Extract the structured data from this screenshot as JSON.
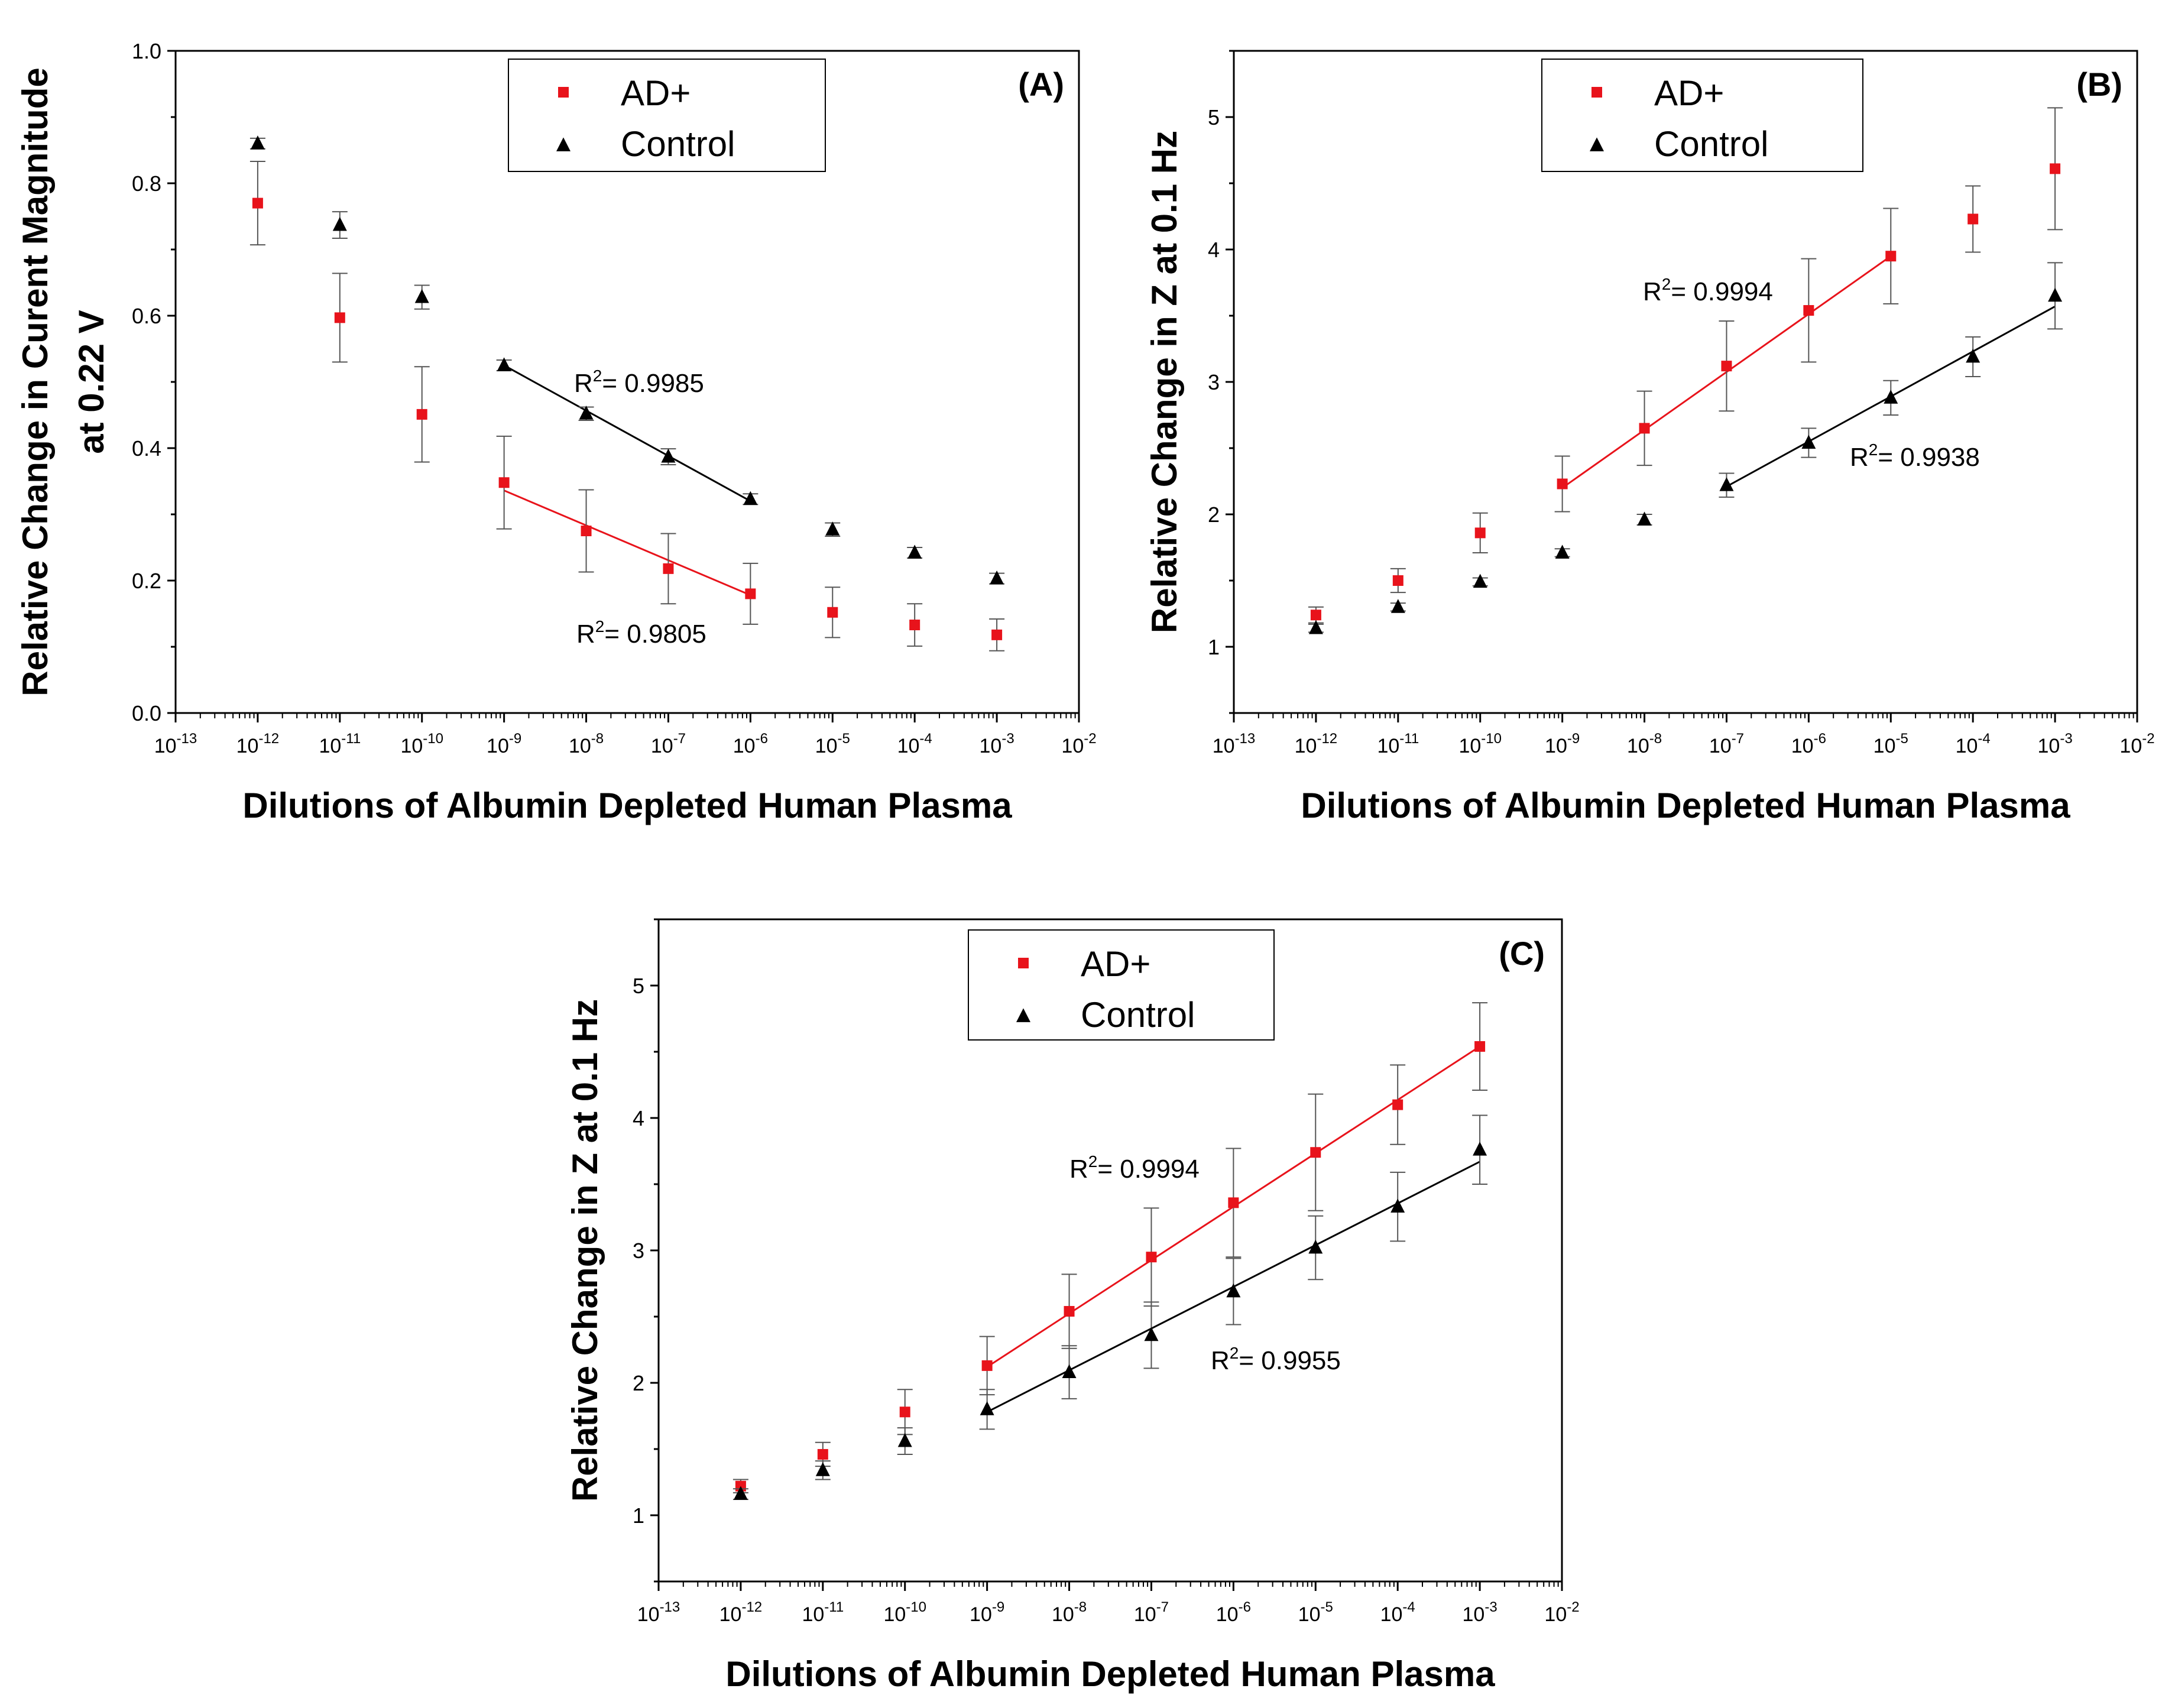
{
  "figure": {
    "panels": [
      "A",
      "B",
      "C"
    ]
  },
  "colors": {
    "ad": "#e8131b",
    "control": "#000000",
    "axis": "#000000",
    "error": "#555555"
  },
  "chart_data": [
    {
      "id": "A",
      "type": "scatter",
      "panel_label": "(A)",
      "title": "",
      "xlabel": "Dilutions of Albumin Depleted Human Plasma",
      "ylabel_lines": [
        "Relative Change in Curent Magnitude",
        "at 0.22 V"
      ],
      "x_scale": "log10",
      "xlim_exp": [
        -13,
        -2
      ],
      "ylim": [
        0.0,
        1.0
      ],
      "yticks": [
        0.0,
        0.2,
        0.4,
        0.6,
        0.8,
        1.0
      ],
      "ytick_labels": [
        "0.0",
        "0.2",
        "0.4",
        "0.6",
        "0.8",
        "1.0"
      ],
      "xtick_exponents": [
        "-13",
        "-12",
        "-11",
        "-10",
        "-9",
        "-8",
        "-7",
        "-6",
        "-5",
        "-4",
        "-3",
        "-2"
      ],
      "xtick_base": "10",
      "legend": {
        "position": "top-center",
        "entries": [
          "AD+",
          "Control"
        ]
      },
      "series": [
        {
          "name": "AD+",
          "marker": "square",
          "color": "#e8131b",
          "x_exp": [
            -12,
            -11,
            -10,
            -9,
            -8,
            -7,
            -6,
            -5,
            -4,
            -3
          ],
          "y": [
            0.77,
            0.597,
            0.451,
            0.348,
            0.275,
            0.218,
            0.18,
            0.152,
            0.133,
            0.118
          ],
          "err": [
            0.063,
            0.067,
            0.072,
            0.07,
            0.062,
            0.053,
            0.046,
            0.038,
            0.032,
            0.024
          ],
          "fit": {
            "x_exp": [
              -9,
              -6
            ],
            "y": [
              0.336,
              0.178
            ],
            "r2_label": "R",
            "r2_sup": "2",
            "r2_value": "= 0.9805"
          }
        },
        {
          "name": "Control",
          "marker": "triangle",
          "color": "#000000",
          "x_exp": [
            -12,
            -11,
            -10,
            -9,
            -8,
            -7,
            -6,
            -5,
            -4,
            -3
          ],
          "y": [
            0.86,
            0.737,
            0.628,
            0.525,
            0.452,
            0.387,
            0.323,
            0.277,
            0.242,
            0.203
          ],
          "err": [
            0.008,
            0.02,
            0.018,
            0.008,
            0.01,
            0.012,
            0.008,
            0.01,
            0.008,
            0.008
          ],
          "fit": {
            "x_exp": [
              -9,
              -6
            ],
            "y": [
              0.525,
              0.32
            ],
            "r2_label": "R",
            "r2_sup": "2",
            "r2_value": "= 0.9985"
          }
        }
      ]
    },
    {
      "id": "B",
      "type": "scatter",
      "panel_label": "(B)",
      "title": "",
      "xlabel": "Dilutions of Albumin Depleted Human Plasma",
      "ylabel_lines": [
        "Relative Change in Z at 0.1 Hz"
      ],
      "x_scale": "log10",
      "xlim_exp": [
        -13,
        -2
      ],
      "ylim": [
        0.5,
        5.5
      ],
      "yticks": [
        1,
        2,
        3,
        4,
        5
      ],
      "ytick_labels": [
        "1",
        "2",
        "3",
        "4",
        "5"
      ],
      "xtick_exponents": [
        "-13",
        "-12",
        "-11",
        "-10",
        "-9",
        "-8",
        "-7",
        "-6",
        "-5",
        "-4",
        "-3",
        "-2"
      ],
      "xtick_base": "10",
      "legend": {
        "position": "top-center",
        "entries": [
          "AD+",
          "Control"
        ]
      },
      "series": [
        {
          "name": "AD+",
          "marker": "square",
          "color": "#e8131b",
          "x_exp": [
            -12,
            -11,
            -10,
            -9,
            -8,
            -7,
            -6,
            -5,
            -4,
            -3
          ],
          "y": [
            1.24,
            1.5,
            1.86,
            2.23,
            2.65,
            3.12,
            3.54,
            3.95,
            4.23,
            4.61
          ],
          "err": [
            0.06,
            0.09,
            0.15,
            0.21,
            0.28,
            0.34,
            0.39,
            0.36,
            0.25,
            0.46
          ],
          "fit": {
            "x_exp": [
              -9,
              -5
            ],
            "y": [
              2.2,
              3.95
            ],
            "r2_label": "R",
            "r2_sup": "2",
            "r2_value": "= 0.9994"
          }
        },
        {
          "name": "Control",
          "marker": "triangle",
          "color": "#000000",
          "x_exp": [
            -12,
            -11,
            -10,
            -9,
            -8,
            -7,
            -6,
            -5,
            -4,
            -3
          ],
          "y": [
            1.14,
            1.3,
            1.49,
            1.71,
            1.96,
            2.22,
            2.54,
            2.88,
            3.19,
            3.65
          ],
          "err": [
            0.03,
            0.03,
            0.03,
            0.03,
            0.04,
            0.09,
            0.11,
            0.13,
            0.15,
            0.25
          ],
          "fit": {
            "x_exp": [
              -7,
              -3
            ],
            "y": [
              2.21,
              3.57
            ],
            "r2_label": "R",
            "r2_sup": "2",
            "r2_value": "= 0.9938"
          }
        }
      ]
    },
    {
      "id": "C",
      "type": "scatter",
      "panel_label": "(C)",
      "title": "",
      "xlabel": "Dilutions of Albumin Depleted Human Plasma",
      "ylabel_lines": [
        "Relative Change in Z at 0.1 Hz"
      ],
      "x_scale": "log10",
      "xlim_exp": [
        -13,
        -2
      ],
      "ylim": [
        0.5,
        5.5
      ],
      "yticks": [
        1,
        2,
        3,
        4,
        5
      ],
      "ytick_labels": [
        "1",
        "2",
        "3",
        "4",
        "5"
      ],
      "xtick_exponents": [
        "-13",
        "-12",
        "-11",
        "-10",
        "-9",
        "-8",
        "-7",
        "-6",
        "-5",
        "-4",
        "-3",
        "-2"
      ],
      "xtick_base": "10",
      "legend": {
        "position": "top-center",
        "entries": [
          "AD+",
          "Control"
        ]
      },
      "series": [
        {
          "name": "AD+",
          "marker": "square",
          "color": "#e8131b",
          "x_exp": [
            -12,
            -11,
            -10,
            -9,
            -8,
            -7,
            -6,
            -5,
            -4,
            -3
          ],
          "y": [
            1.22,
            1.46,
            1.78,
            2.13,
            2.54,
            2.95,
            3.36,
            3.74,
            4.1,
            4.54
          ],
          "err": [
            0.05,
            0.09,
            0.17,
            0.22,
            0.28,
            0.37,
            0.41,
            0.44,
            0.3,
            0.33
          ],
          "fit": {
            "x_exp": [
              -9,
              -3
            ],
            "y": [
              2.12,
              4.54
            ],
            "r2_label": "R",
            "r2_sup": "2",
            "r2_value": "= 0.9994"
          }
        },
        {
          "name": "Control",
          "marker": "triangle",
          "color": "#000000",
          "x_exp": [
            -12,
            -11,
            -10,
            -9,
            -8,
            -7,
            -6,
            -5,
            -4,
            -3
          ],
          "y": [
            1.16,
            1.34,
            1.56,
            1.8,
            2.08,
            2.36,
            2.69,
            3.02,
            3.33,
            3.76
          ],
          "err": [
            0.04,
            0.07,
            0.1,
            0.15,
            0.2,
            0.25,
            0.25,
            0.24,
            0.26,
            0.26
          ],
          "fit": {
            "x_exp": [
              -9,
              -3
            ],
            "y": [
              1.78,
              3.67
            ],
            "r2_label": "R",
            "r2_sup": "2",
            "r2_value": "= 0.9955"
          }
        }
      ]
    }
  ]
}
